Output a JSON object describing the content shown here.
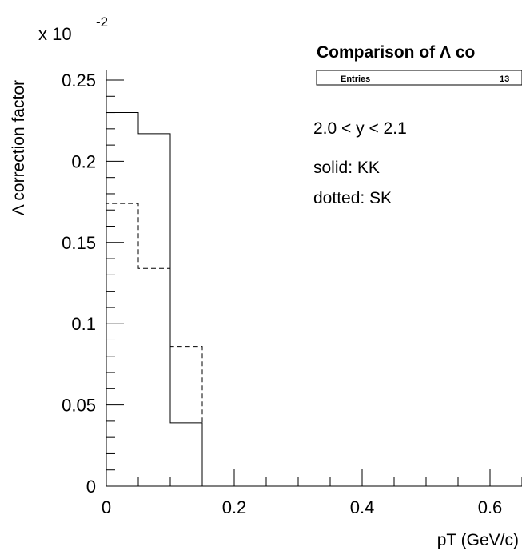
{
  "chart_data": {
    "type": "histogram",
    "title": "Comparison of Λ co",
    "ylabel": "Λ correction factor",
    "xlabel": "pT (GeV/c)",
    "y_multiplier": "x 10",
    "y_multiplier_exp": "-2",
    "xlim": [
      0,
      0.65
    ],
    "ylim": [
      0,
      0.26
    ],
    "x_ticks": [
      {
        "value": 0,
        "label": "0"
      },
      {
        "value": 0.2,
        "label": "0.2"
      },
      {
        "value": 0.4,
        "label": "0.4"
      },
      {
        "value": 0.6,
        "label": "0.6"
      }
    ],
    "y_ticks": [
      {
        "value": 0,
        "label": "0"
      },
      {
        "value": 0.05,
        "label": "0.05"
      },
      {
        "value": 0.1,
        "label": "0.1"
      },
      {
        "value": 0.15,
        "label": "0.15"
      },
      {
        "value": 0.2,
        "label": "0.2"
      },
      {
        "value": 0.25,
        "label": "0.25"
      }
    ],
    "bin_edges": [
      0,
      0.05,
      0.1,
      0.15
    ],
    "series": [
      {
        "name": "solid: KK",
        "style": "solid",
        "values": [
          0.23,
          0.217,
          0.039
        ]
      },
      {
        "name": "dotted: SK",
        "style": "dashed",
        "values": [
          0.174,
          0.134,
          0.086
        ]
      }
    ],
    "stats_box": {
      "label": "Entries",
      "value": "13"
    },
    "annotations": [
      "2.0 < y < 2.1",
      "solid: KK",
      "dotted: SK"
    ],
    "grid": false
  }
}
